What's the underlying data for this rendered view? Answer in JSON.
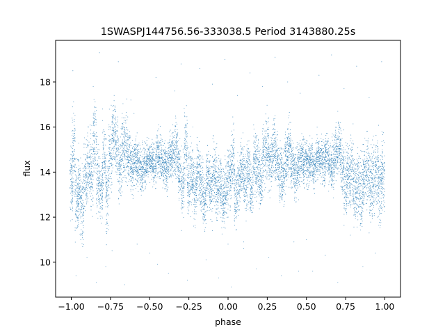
{
  "chart_data": {
    "type": "scatter",
    "title": "1SWASPJ144756.56-333038.5 Period 3143880.25s",
    "xlabel": "phase",
    "ylabel": "flux",
    "xlim": [
      -1.1,
      1.1
    ],
    "ylim": [
      8.45,
      19.85
    ],
    "xticks": [
      -1.0,
      -0.75,
      -0.5,
      -0.25,
      0.0,
      0.25,
      0.5,
      0.75,
      1.0
    ],
    "xtick_labels": [
      "−1.00",
      "−0.75",
      "−0.50",
      "−0.25",
      "0.00",
      "0.25",
      "0.50",
      "0.75",
      "1.00"
    ],
    "yticks": [
      10,
      12,
      14,
      16,
      18
    ],
    "ytick_labels": [
      "10",
      "12",
      "14",
      "16",
      "18"
    ],
    "grid": false,
    "legend": "none",
    "point_color": "#1f77b4",
    "series": [
      {
        "x": [
          -0.999,
          -0.985,
          -0.965,
          -0.95,
          -0.93,
          -0.91,
          -0.89,
          -0.87,
          -0.85,
          -0.83,
          -0.81,
          -0.79,
          -0.77,
          -0.75,
          -0.73,
          -0.71,
          -0.69,
          -0.67,
          -0.65,
          -0.63,
          -0.61,
          -0.59,
          -0.57,
          -0.55,
          -0.53,
          -0.51,
          -0.49,
          -0.47,
          -0.45,
          -0.43,
          -0.41,
          -0.39,
          -0.37,
          -0.35,
          -0.33,
          -0.31,
          -0.29,
          -0.27,
          -0.25,
          -0.23,
          -0.21,
          -0.19,
          -0.17,
          -0.15,
          -0.13,
          -0.11,
          -0.09,
          -0.07,
          -0.05,
          -0.03,
          -0.01,
          0.01,
          0.03,
          0.05,
          0.07,
          0.09,
          0.11,
          0.13,
          0.15,
          0.17,
          0.19,
          0.21,
          0.23,
          0.25,
          0.27,
          0.29,
          0.31,
          0.33,
          0.35,
          0.37,
          0.39,
          0.41,
          0.43,
          0.45,
          0.47,
          0.49,
          0.51,
          0.53,
          0.55,
          0.57,
          0.59,
          0.61,
          0.63,
          0.65,
          0.67,
          0.69,
          0.71,
          0.73,
          0.75,
          0.77,
          0.79,
          0.81,
          0.83,
          0.85,
          0.87,
          0.89,
          0.91,
          0.93,
          0.95,
          0.97,
          0.99
        ],
        "y": [
          13.5,
          15.0,
          12.8,
          13.2,
          12.5,
          13.6,
          14.2,
          14.0,
          15.5,
          13.8,
          13.2,
          14.5,
          13.0,
          14.8,
          15.8,
          15.3,
          14.0,
          15.0,
          15.2,
          14.6,
          14.2,
          14.5,
          14.4,
          14.0,
          14.3,
          14.6,
          14.5,
          14.2,
          14.8,
          14.6,
          14.4,
          14.2,
          14.7,
          14.8,
          15.0,
          14.1,
          13.4,
          15.2,
          13.6,
          13.8,
          13.2,
          14.0,
          13.5,
          12.6,
          13.8,
          13.4,
          14.0,
          13.2,
          13.6,
          12.8,
          13.4,
          13.8,
          14.5,
          12.9,
          13.6,
          14.2,
          13.5,
          14.0,
          13.3,
          14.6,
          14.1,
          13.8,
          14.8,
          15.0,
          14.3,
          15.2,
          14.6,
          14.0,
          13.8,
          14.5,
          15.1,
          14.4,
          13.9,
          14.2,
          14.6,
          14.4,
          14.3,
          14.5,
          14.2,
          14.7,
          14.6,
          14.4,
          14.8,
          14.3,
          14.5,
          14.9,
          15.0,
          14.2,
          13.6,
          13.8,
          14.0,
          13.2,
          13.5,
          13.0,
          13.8,
          14.1,
          13.4,
          13.6,
          14.0,
          13.3,
          13.8
        ],
        "spread": [
          1.2,
          1.5,
          1.4,
          1.3,
          1.4,
          1.3,
          1.2,
          1.4,
          1.3,
          1.3,
          1.2,
          1.3,
          1.4,
          1.3,
          1.1,
          1.2,
          1.3,
          1.2,
          1.2,
          1.0,
          0.9,
          0.9,
          0.8,
          0.8,
          0.8,
          0.7,
          0.7,
          0.7,
          0.8,
          0.8,
          0.8,
          0.8,
          0.9,
          0.9,
          1.0,
          1.1,
          1.2,
          1.3,
          1.2,
          1.2,
          1.1,
          1.1,
          1.2,
          1.0,
          1.0,
          1.1,
          1.1,
          1.2,
          1.1,
          1.1,
          1.2,
          1.1,
          1.2,
          1.1,
          1.0,
          1.1,
          1.2,
          1.1,
          1.0,
          1.1,
          1.1,
          1.0,
          1.1,
          1.2,
          1.1,
          1.1,
          1.0,
          1.1,
          1.0,
          1.0,
          1.1,
          1.0,
          0.9,
          0.9,
          0.8,
          0.8,
          0.8,
          0.7,
          0.7,
          0.8,
          0.8,
          0.8,
          0.8,
          0.8,
          0.9,
          0.9,
          1.0,
          1.1,
          1.2,
          1.2,
          1.3,
          1.2,
          1.2,
          1.3,
          1.3,
          1.2,
          1.3,
          1.2,
          1.2,
          1.3,
          1.2
        ]
      }
    ],
    "outliers": {
      "x": [
        -0.99,
        -0.97,
        -0.94,
        -0.9,
        -0.86,
        -0.84,
        -0.82,
        -0.78,
        -0.74,
        -0.7,
        -0.66,
        -0.62,
        -0.58,
        -0.5,
        -0.46,
        -0.38,
        -0.34,
        -0.3,
        -0.26,
        -0.22,
        -0.18,
        -0.14,
        -0.1,
        -0.06,
        -0.02,
        0.02,
        0.06,
        0.1,
        0.14,
        0.18,
        0.22,
        0.26,
        0.3,
        0.34,
        0.38,
        0.42,
        0.46,
        0.54,
        0.58,
        0.62,
        0.66,
        0.7,
        0.74,
        0.78,
        0.82,
        0.86,
        0.9,
        0.94,
        0.98,
        -0.8,
        -0.6,
        -0.1,
        0.1,
        0.3,
        0.5,
        0.7,
        0.9,
        -0.45,
        0.45,
        0.0
      ],
      "y": [
        18.5,
        9.4,
        11.0,
        10.2,
        17.8,
        9.1,
        19.3,
        9.8,
        10.5,
        18.9,
        9.0,
        17.2,
        10.8,
        10.4,
        18.2,
        9.5,
        17.6,
        18.8,
        9.2,
        11.6,
        18.6,
        10.1,
        17.9,
        9.3,
        19.0,
        8.9,
        17.4,
        10.6,
        18.4,
        9.7,
        17.8,
        10.2,
        19.1,
        9.4,
        18.0,
        10.9,
        17.5,
        9.6,
        18.3,
        10.3,
        19.2,
        9.1,
        17.7,
        11.2,
        18.7,
        9.8,
        17.3,
        10.4,
        18.9,
        16.8,
        16.6,
        11.4,
        10.9,
        16.5,
        11.0,
        16.7,
        11.3,
        9.9,
        9.6,
        10.8
      ]
    }
  }
}
